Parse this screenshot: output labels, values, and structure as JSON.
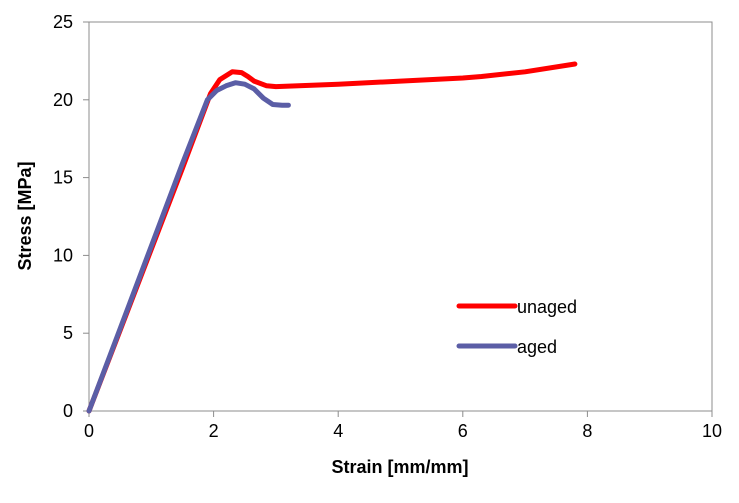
{
  "chart_data": {
    "type": "line",
    "title": "",
    "xlabel": "Strain [mm/mm]",
    "ylabel": "Stress [MPa]",
    "xlim": [
      0,
      10
    ],
    "ylim": [
      0,
      25
    ],
    "xticks": [
      0,
      2,
      4,
      6,
      8,
      10
    ],
    "yticks": [
      0,
      5,
      10,
      15,
      20,
      25
    ],
    "grid": false,
    "legend_position": "lower-right (inside plot)",
    "series": [
      {
        "name": "unaged",
        "color": "#ff0000",
        "x": [
          0,
          0.5,
          1.0,
          1.5,
          1.95,
          2.1,
          2.3,
          2.45,
          2.55,
          2.65,
          2.85,
          3.0,
          4.0,
          5.0,
          6.0,
          6.3,
          7.0,
          7.8
        ],
        "y": [
          0,
          5.2,
          10.4,
          15.6,
          20.4,
          21.3,
          21.8,
          21.75,
          21.5,
          21.2,
          20.9,
          20.85,
          21.0,
          21.2,
          21.4,
          21.5,
          21.8,
          22.3
        ]
      },
      {
        "name": "aged",
        "color": "#5b5ea6",
        "x": [
          0,
          0.5,
          1.0,
          1.5,
          1.9,
          2.05,
          2.2,
          2.35,
          2.5,
          2.65,
          2.8,
          2.95,
          3.1,
          3.2
        ],
        "y": [
          0,
          5.3,
          10.6,
          15.9,
          20.0,
          20.6,
          20.9,
          21.1,
          21.0,
          20.7,
          20.1,
          19.7,
          19.65,
          19.65
        ]
      }
    ]
  }
}
